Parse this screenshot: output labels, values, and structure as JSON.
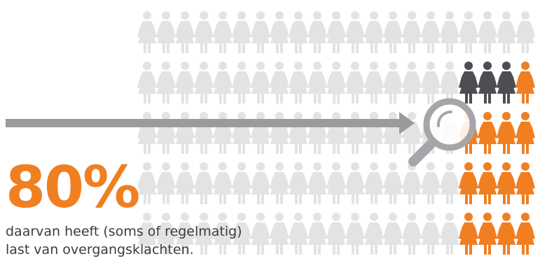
{
  "headline": {
    "value": "80%",
    "color": "#f07f22"
  },
  "caption": {
    "line1": "daarvan heeft (soms of regelmatig)",
    "line2": "last van overgangsklachten."
  },
  "icons": {
    "figure": "woman-figure-icon",
    "magnifier": "magnifying-glass-icon",
    "arrow": "arrow-right-icon"
  },
  "colors": {
    "faded_figure": "#e3e3e3",
    "dark_figure": "#4d4e52",
    "highlight_figure": "#f07f22",
    "arrow": "#9a9b9e",
    "magnifier": "#a5a6a9"
  },
  "sample": {
    "highlighted_share": 0.8,
    "dark_count": 3,
    "orange_count": 13
  }
}
